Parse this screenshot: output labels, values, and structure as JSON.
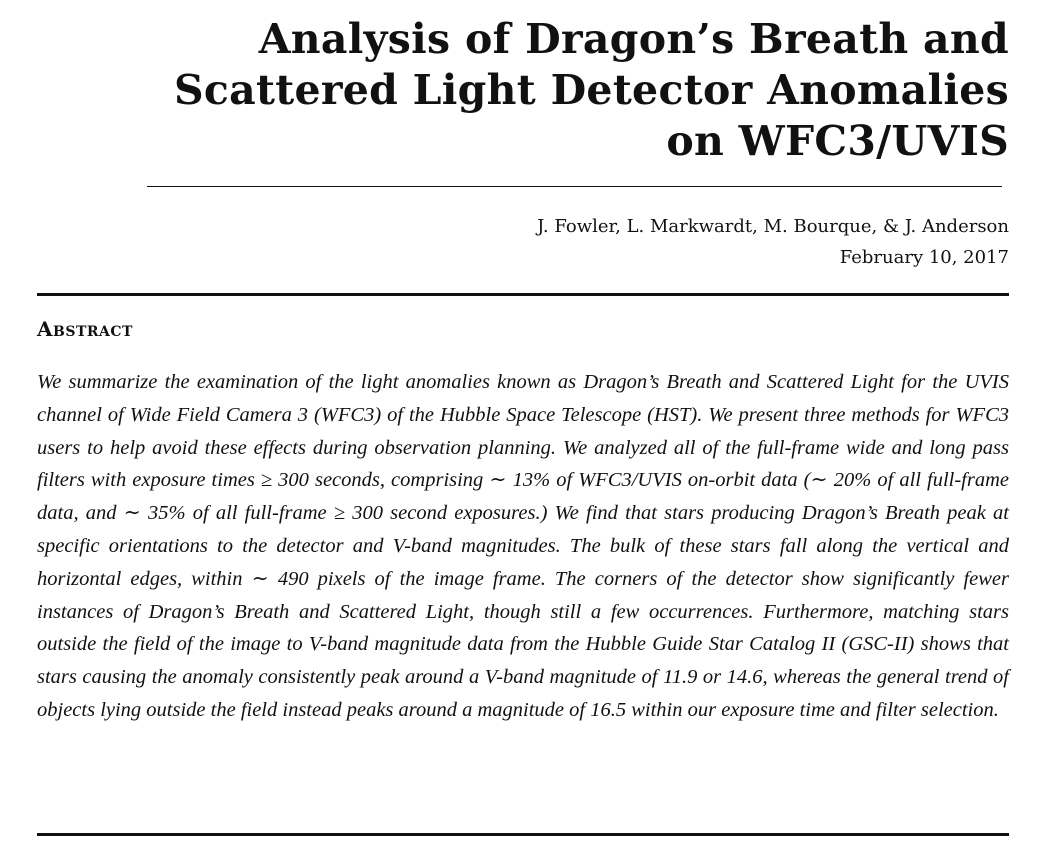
{
  "paper": {
    "title_lines": [
      "Analysis of Dragon’s Breath and",
      "Scattered Light Detector Anomalies",
      "on WFC3/UVIS"
    ],
    "authors": "J. Fowler, L. Markwardt, M. Bourque, & J. Anderson",
    "date": "February 10, 2017",
    "abstract_heading": "Abstract",
    "abstract_text": "We summarize the examination of the light anomalies known as Dragon’s Breath and Scattered Light for the UVIS channel of Wide Field Camera 3 (WFC3) of the Hubble Space Telescope (HST). We present three methods for WFC3 users to help avoid these effects during observation planning. We analyzed all of the full-frame wide and long pass filters with exposure times ≥ 300 seconds, comprising ∼ 13% of WFC3/UVIS on-orbit data (∼ 20% of all full-frame data, and ∼ 35% of all full-frame ≥ 300 second exposures.) We find that stars producing Dragon’s Breath peak at specific orientations to the detector and V-band magnitudes. The bulk of these stars fall along the vertical and horizontal edges, within ∼ 490 pixels of the image frame. The corners of the detector show significantly fewer instances of Dragon’s Breath and Scattered Light, though still a few occurrences. Furthermore, matching stars outside the field of the image to V-band magnitude data from the Hubble Guide Star Catalog II (GSC-II) shows that stars causing the anomaly consistently peak around a V-band magnitude of 11.9 or 14.6, whereas the general trend of objects lying outside the field instead peaks around a magnitude of 16.5 within our exposure time and filter selection."
  }
}
